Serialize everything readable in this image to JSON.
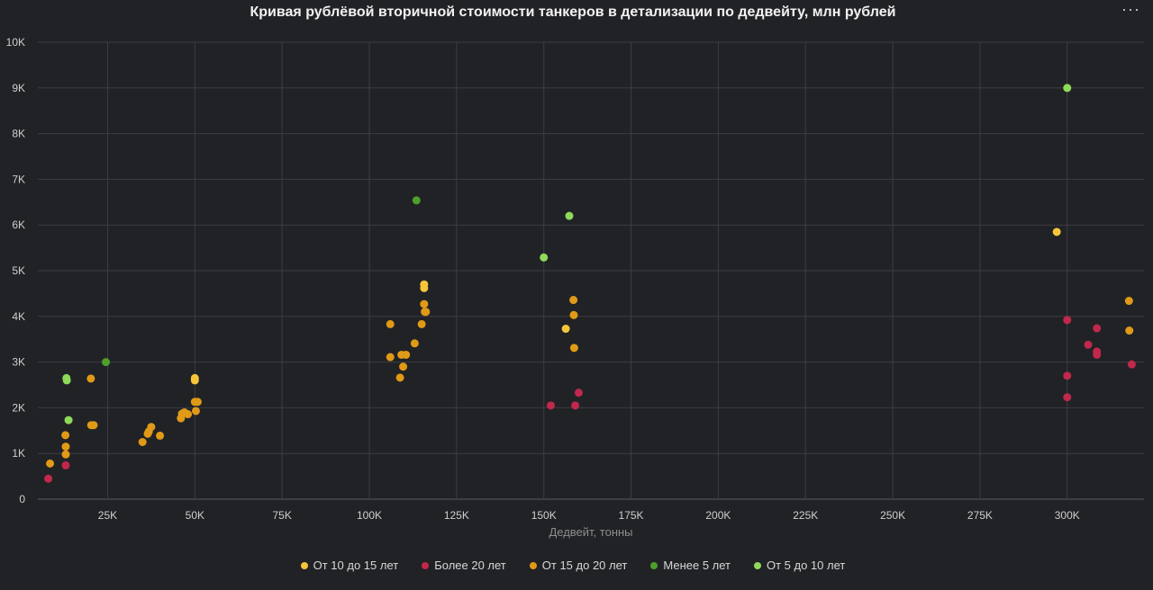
{
  "header": {
    "title": "Кривая рублёвой вторичной стоимости танкеров в детализации по дедвейту, млн рублей",
    "menu_label": "···"
  },
  "chart_data": {
    "type": "scatter",
    "title": "Кривая рублёвой вторичной стоимости танкеров в детализации по дедвейту, млн рублей",
    "xlabel": "Дедвейт, тонны",
    "ylabel": "",
    "xlim": [
      5000,
      322000
    ],
    "ylim": [
      0,
      10000
    ],
    "xticks": [
      25000,
      50000,
      75000,
      100000,
      125000,
      150000,
      175000,
      200000,
      225000,
      250000,
      275000,
      300000
    ],
    "xtick_labels": [
      "25K",
      "50K",
      "75K",
      "100K",
      "125K",
      "150K",
      "175K",
      "200K",
      "225K",
      "250K",
      "275K",
      "300K"
    ],
    "yticks": [
      0,
      1000,
      2000,
      3000,
      4000,
      5000,
      6000,
      7000,
      8000,
      9000,
      10000
    ],
    "ytick_labels": [
      "0",
      "1K",
      "2K",
      "3K",
      "4K",
      "5K",
      "6K",
      "7K",
      "8K",
      "9K",
      "10K"
    ],
    "grid": true,
    "legend_position": "bottom",
    "series": [
      {
        "name": "От 10 до 15 лет",
        "color": "#f5c63a",
        "points": [
          [
            50000,
            2650
          ],
          [
            50000,
            2600
          ],
          [
            115700,
            4700
          ],
          [
            115700,
            4620
          ],
          [
            156300,
            3730
          ],
          [
            297000,
            5850
          ]
        ]
      },
      {
        "name": "Более 20 лет",
        "color": "#c0284c",
        "points": [
          [
            8000,
            450
          ],
          [
            13000,
            740
          ],
          [
            152000,
            2050
          ],
          [
            159000,
            2050
          ],
          [
            160000,
            2330
          ],
          [
            300000,
            3920
          ],
          [
            300000,
            2700
          ],
          [
            300000,
            2230
          ],
          [
            306000,
            3380
          ],
          [
            308500,
            3740
          ],
          [
            308500,
            3230
          ],
          [
            308500,
            3160
          ],
          [
            318500,
            2950
          ]
        ]
      },
      {
        "name": "От 15 до 20 лет",
        "color": "#e09a17",
        "points": [
          [
            8500,
            780
          ],
          [
            12900,
            1400
          ],
          [
            13000,
            1150
          ],
          [
            13000,
            980
          ],
          [
            20200,
            2640
          ],
          [
            20300,
            1620
          ],
          [
            21000,
            1620
          ],
          [
            35000,
            1250
          ],
          [
            36500,
            1430
          ],
          [
            36800,
            1480
          ],
          [
            37500,
            1580
          ],
          [
            40000,
            1390
          ],
          [
            46000,
            1770
          ],
          [
            46300,
            1870
          ],
          [
            47000,
            1900
          ],
          [
            48000,
            1860
          ],
          [
            50000,
            2130
          ],
          [
            50300,
            1930
          ],
          [
            50800,
            2130
          ],
          [
            106000,
            3830
          ],
          [
            106000,
            3110
          ],
          [
            108800,
            2660
          ],
          [
            109200,
            3160
          ],
          [
            109700,
            2900
          ],
          [
            110500,
            3160
          ],
          [
            113000,
            3410
          ],
          [
            115000,
            3830
          ],
          [
            115700,
            4270
          ],
          [
            115900,
            4100
          ],
          [
            116200,
            4100
          ],
          [
            158500,
            4360
          ],
          [
            158600,
            4030
          ],
          [
            158700,
            3310
          ],
          [
            317700,
            4340
          ],
          [
            317800,
            3690
          ]
        ]
      },
      {
        "name": "Менее 5 лет",
        "color": "#4ea02b",
        "points": [
          [
            24500,
            3000
          ],
          [
            113500,
            6540
          ]
        ]
      },
      {
        "name": "От 5 до 10 лет",
        "color": "#8fd95a",
        "points": [
          [
            13200,
            2650
          ],
          [
            13300,
            2600
          ],
          [
            13800,
            1730
          ],
          [
            150000,
            5290
          ],
          [
            157300,
            6200
          ],
          [
            300000,
            9000
          ]
        ]
      }
    ]
  }
}
